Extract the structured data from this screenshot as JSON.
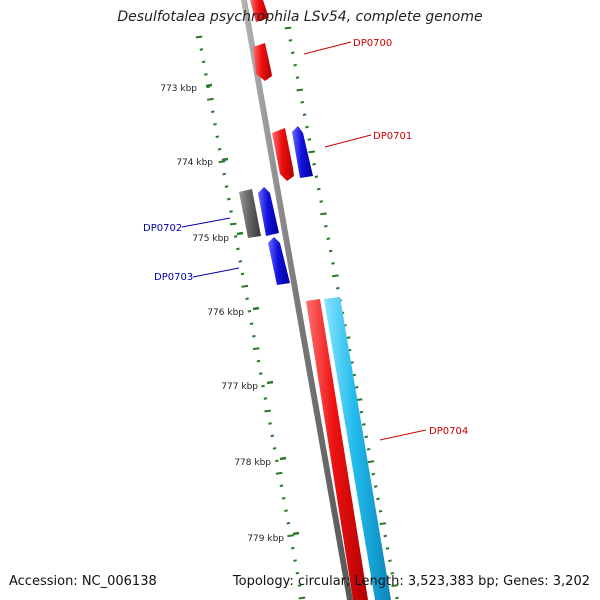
{
  "title": "Desulfotalea psychrophila LSv54, complete genome",
  "footer": {
    "accession": "Accession: NC_006138",
    "summary": "Topology: circular; Length: 3,523,383 bp; Genes: 3,202"
  },
  "colors": {
    "backbone": "#8a8a8a",
    "forward_gene": "#ee1111",
    "reverse_gene": "#1111dd",
    "other_gene": "#666666",
    "rna_feature": "#22bbee",
    "gc_ticks": "#2a7a2a",
    "label_red": "#cc0000",
    "label_blue": "#0000aa"
  },
  "ticks": [
    {
      "label": "773 kbp"
    },
    {
      "label": "774 kbp"
    },
    {
      "label": "775 kbp"
    },
    {
      "label": "776 kbp"
    },
    {
      "label": "777 kbp"
    },
    {
      "label": "778 kbp"
    },
    {
      "label": "779 kbp"
    }
  ],
  "genes": [
    {
      "label": "DP0700",
      "strand": "forward",
      "color": "forward_gene"
    },
    {
      "label": "DP0701",
      "strand": "forward",
      "color": "forward_gene"
    },
    {
      "label": "",
      "strand": "reverse",
      "color": "reverse_gene"
    },
    {
      "label": "",
      "strand": "other",
      "color": "other_gene"
    },
    {
      "label": "DP0702",
      "strand": "reverse",
      "color": "reverse_gene"
    },
    {
      "label": "DP0703",
      "strand": "reverse",
      "color": "reverse_gene"
    },
    {
      "label": "DP0704",
      "strand": "forward",
      "color": "forward_gene"
    },
    {
      "label": "",
      "strand": "forward",
      "color": "rna_feature"
    }
  ]
}
